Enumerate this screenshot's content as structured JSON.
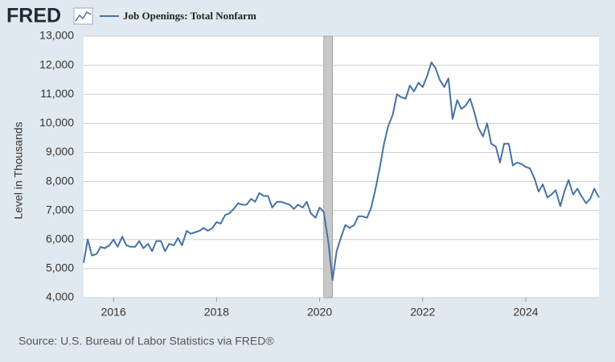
{
  "brand": "FRED",
  "chart_data": {
    "type": "line",
    "y_label": "Level in Thousands",
    "source": "Source: U.S. Bureau of Labor Statistics via FRED®",
    "grid": true,
    "legend": "top-left",
    "recessions": [
      [
        2020.08,
        2020.25
      ]
    ],
    "xlim": [
      2015.42,
      2025.42
    ],
    "xticks": [
      2016,
      2018,
      2020,
      2022,
      2024
    ],
    "ylim": [
      4000,
      13000
    ],
    "yticks": [
      {
        "value": 4000,
        "label": "4,000"
      },
      {
        "value": 5000,
        "label": "5,000"
      },
      {
        "value": 6000,
        "label": "6,000"
      },
      {
        "value": 7000,
        "label": "7,000"
      },
      {
        "value": 8000,
        "label": "8,000"
      },
      {
        "value": 9000,
        "label": "9,000"
      },
      {
        "value": 10000,
        "label": "10,000"
      },
      {
        "value": 11000,
        "label": "11,000"
      },
      {
        "value": 12000,
        "label": "12,000"
      },
      {
        "value": 13000,
        "label": "13,000"
      }
    ],
    "x": [
      2015.42,
      2015.5,
      2015.58,
      2015.67,
      2015.75,
      2015.83,
      2015.92,
      2016,
      2016.08,
      2016.17,
      2016.25,
      2016.33,
      2016.42,
      2016.5,
      2016.58,
      2016.67,
      2016.75,
      2016.83,
      2016.92,
      2017,
      2017.08,
      2017.17,
      2017.25,
      2017.33,
      2017.42,
      2017.5,
      2017.58,
      2017.67,
      2017.75,
      2017.83,
      2017.92,
      2018,
      2018.08,
      2018.17,
      2018.25,
      2018.33,
      2018.42,
      2018.5,
      2018.58,
      2018.67,
      2018.75,
      2018.83,
      2018.92,
      2019,
      2019.08,
      2019.17,
      2019.25,
      2019.33,
      2019.42,
      2019.5,
      2019.58,
      2019.67,
      2019.75,
      2019.83,
      2019.92,
      2020,
      2020.08,
      2020.17,
      2020.25,
      2020.33,
      2020.42,
      2020.5,
      2020.58,
      2020.67,
      2020.75,
      2020.83,
      2020.92,
      2021,
      2021.08,
      2021.17,
      2021.25,
      2021.33,
      2021.42,
      2021.5,
      2021.58,
      2021.67,
      2021.75,
      2021.83,
      2021.92,
      2022,
      2022.08,
      2022.17,
      2022.25,
      2022.33,
      2022.42,
      2022.5,
      2022.58,
      2022.67,
      2022.75,
      2022.83,
      2022.92,
      2023,
      2023.08,
      2023.17,
      2023.25,
      2023.33,
      2023.42,
      2023.5,
      2023.58,
      2023.67,
      2023.75,
      2023.83,
      2023.92,
      2024,
      2024.08,
      2024.17,
      2024.25,
      2024.33,
      2024.42,
      2024.5,
      2024.58,
      2024.67,
      2024.75,
      2024.83,
      2024.92,
      2025,
      2025.08,
      2025.17,
      2025.25,
      2025.33,
      2025.42
    ],
    "series": [
      {
        "name": "Job Openings: Total Nonfarm",
        "color": "#4572a7",
        "values": [
          5200,
          6000,
          5450,
          5500,
          5750,
          5700,
          5800,
          6000,
          5750,
          6100,
          5800,
          5750,
          5750,
          5950,
          5700,
          5850,
          5600,
          5950,
          5950,
          5600,
          5850,
          5800,
          6050,
          5800,
          6300,
          6200,
          6250,
          6300,
          6400,
          6300,
          6400,
          6600,
          6550,
          6850,
          6900,
          7050,
          7250,
          7200,
          7200,
          7400,
          7300,
          7600,
          7500,
          7500,
          7100,
          7300,
          7300,
          7250,
          7200,
          7050,
          7200,
          7100,
          7300,
          6900,
          6750,
          7100,
          6950,
          5900,
          4600,
          5600,
          6100,
          6500,
          6400,
          6500,
          6800,
          6800,
          6750,
          7100,
          7700,
          8500,
          9300,
          9900,
          10300,
          11000,
          10900,
          10850,
          11300,
          11100,
          11400,
          11250,
          11600,
          12100,
          11900,
          11500,
          11250,
          11550,
          10150,
          10800,
          10500,
          10600,
          10850,
          10400,
          9850,
          9550,
          10000,
          9300,
          9200,
          8650,
          9300,
          9300,
          8550,
          8650,
          8600,
          8500,
          8450,
          8100,
          7650,
          7900,
          7450,
          7550,
          7700,
          7150,
          7650,
          8050,
          7550,
          7750,
          7500,
          7250,
          7400,
          7750,
          7450
        ]
      }
    ]
  }
}
